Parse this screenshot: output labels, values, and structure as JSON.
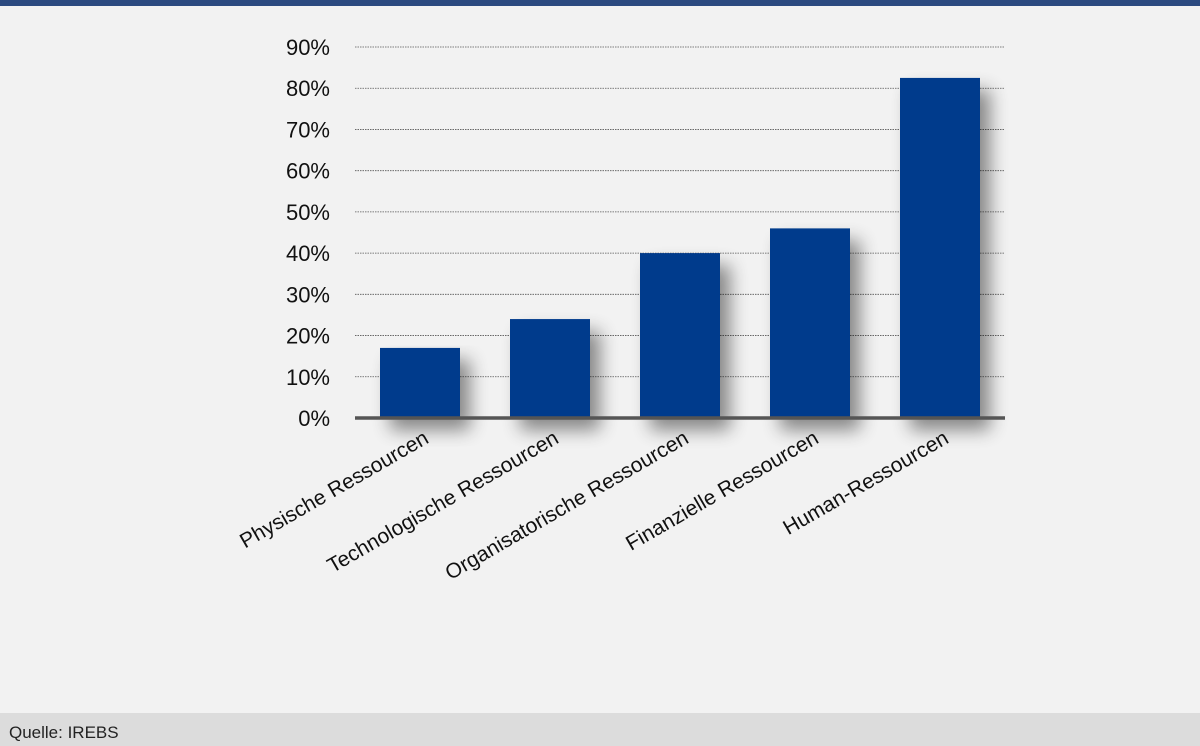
{
  "chart_data": {
    "type": "bar",
    "categories": [
      "Physische Ressourcen",
      "Technologische Ressourcen",
      "Organisatorische Ressourcen",
      "Finanzielle Ressourcen",
      "Human-Ressourcen"
    ],
    "values": [
      17,
      24,
      40,
      46,
      82.5
    ],
    "ylim": [
      0,
      90
    ],
    "yticks": [
      0,
      10,
      20,
      30,
      40,
      50,
      60,
      70,
      80,
      90
    ],
    "ytick_labels": [
      "0%",
      "10%",
      "20%",
      "30%",
      "40%",
      "50%",
      "60%",
      "70%",
      "80%",
      "90%"
    ],
    "title": "",
    "xlabel": "",
    "ylabel": "",
    "grid": true,
    "bar_color": "#003a8c",
    "grid_color": "#555555",
    "axis_color": "#555555",
    "accent_color": "#2c4a80"
  },
  "footer": {
    "source": "Quelle: IREBS"
  }
}
